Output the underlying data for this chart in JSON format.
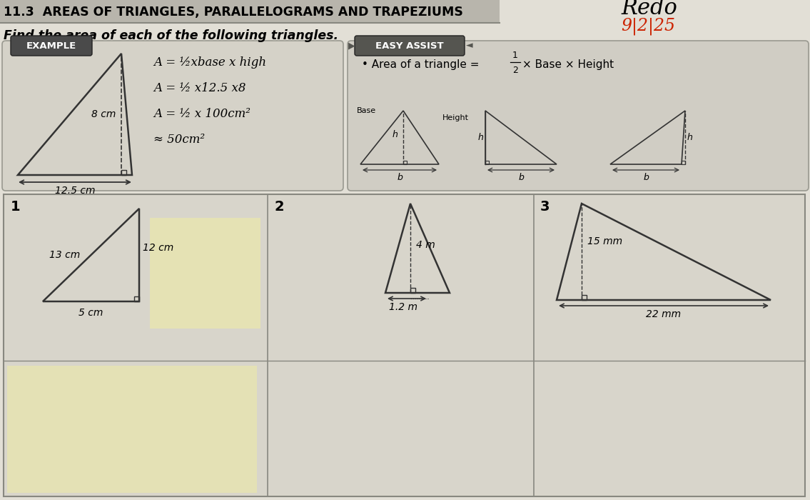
{
  "title": "11.3  AREAS OF TRIANGLES, PARALLELOGRAMS AND TRAPEZIUMS",
  "subtitle": "Find the area of each of the following triangles.",
  "redo_text": "Redo",
  "date_text": "9|2|25",
  "bg_color": "#cbc8bf",
  "paper_color": "#e2dfd6",
  "example_label": "EXAMPLE",
  "easy_assist_label": "EASY ASSIST",
  "easy_assist_bullet": "• Area of a triangle = ",
  "easy_assist_formula_part": "× Base × Height",
  "example_calc": [
    "A = ½xbase x high",
    "A = ½ x12.5 x8",
    "A = ½ x 100cm²",
    "≈ 50cm²"
  ],
  "example_base": "12.5 cm",
  "example_height": "8 cm",
  "num1_labels": [
    "13 cm",
    "12 cm",
    "5 cm"
  ],
  "num2_labels": [
    "4 m",
    "1.2 m"
  ],
  "num3_labels": [
    "15 mm",
    "22 mm"
  ],
  "sticky_color": "#e8e5b0",
  "title_bar_color": "#b8b5ac",
  "example_box_color": "#d5d2c8",
  "easy_box_color": "#d0cdc4",
  "grid_color": "#c0bdb4",
  "problem_bg": "#d8d5cb"
}
